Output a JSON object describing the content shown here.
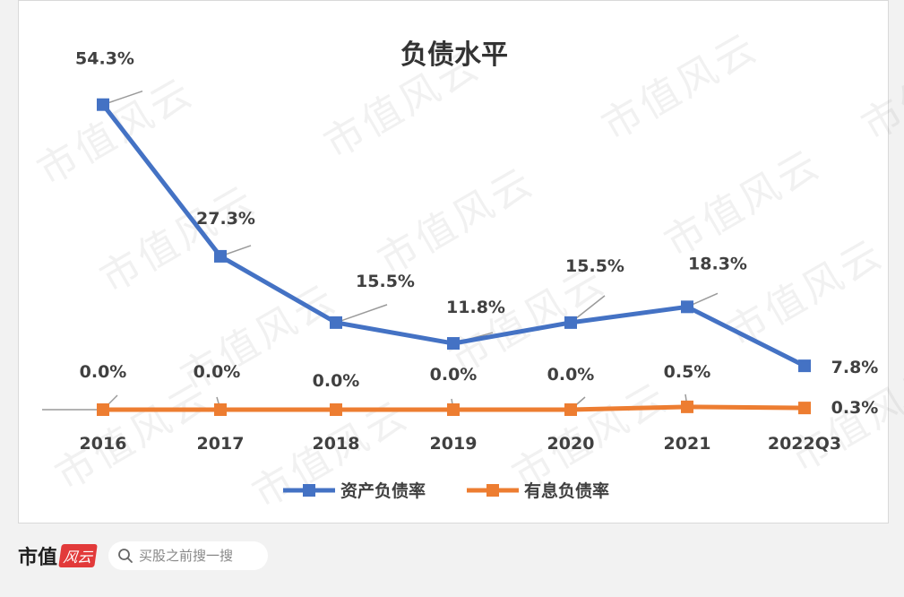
{
  "chart_data": {
    "type": "line",
    "title": "负债水平",
    "categories": [
      "2016",
      "2017",
      "2018",
      "2019",
      "2020",
      "2021",
      "2022Q3"
    ],
    "series": [
      {
        "name": "资产负债率",
        "color": "#4472c4",
        "values": [
          54.3,
          27.3,
          15.5,
          11.8,
          15.5,
          18.3,
          7.8
        ],
        "labels": [
          "54.3%",
          "27.3%",
          "15.5%",
          "11.8%",
          "15.5%",
          "18.3%",
          "7.8%"
        ]
      },
      {
        "name": "有息负债率",
        "color": "#ed7d31",
        "values": [
          0.0,
          0.0,
          0.0,
          0.0,
          0.0,
          0.5,
          0.3
        ],
        "labels": [
          "0.0%",
          "0.0%",
          "0.0%",
          "0.0%",
          "0.0%",
          "0.5%",
          "0.3%"
        ]
      }
    ],
    "ylim": [
      0,
      60
    ],
    "grid": false,
    "legend_position": "bottom"
  },
  "watermark": "市值风云",
  "footer": {
    "brand": "市值",
    "brand_badge": "风云",
    "search_placeholder": "买股之前搜一搜"
  }
}
